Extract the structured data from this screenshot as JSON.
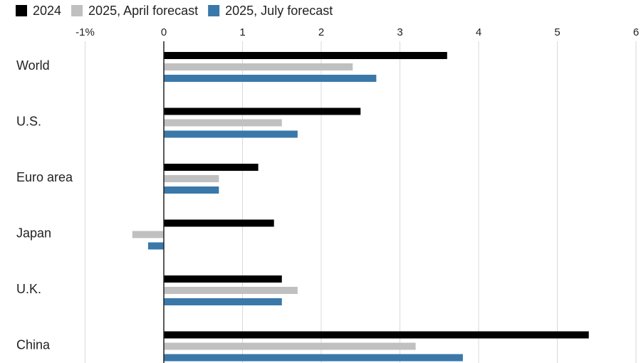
{
  "chart_data": {
    "type": "bar",
    "orientation": "horizontal",
    "title": "",
    "xlabel": "",
    "ylabel": "",
    "xlim": [
      -1,
      6
    ],
    "ticks": [
      -1,
      0,
      1,
      2,
      3,
      4,
      5,
      6
    ],
    "tick_labels": [
      "-1%",
      "0",
      "1",
      "2",
      "3",
      "4",
      "5",
      "6"
    ],
    "grid": "vertical",
    "legend_position": "top-left",
    "categories": [
      "World",
      "U.S.",
      "Euro area",
      "Japan",
      "U.K.",
      "China"
    ],
    "series": [
      {
        "name": "2024",
        "color": "#000000",
        "values": [
          3.6,
          2.5,
          1.2,
          1.4,
          1.5,
          5.4
        ]
      },
      {
        "name": "2025, April forecast",
        "color": "#c0c0c0",
        "values": [
          2.4,
          1.5,
          0.7,
          -0.4,
          1.7,
          3.2
        ]
      },
      {
        "name": "2025, July forecast",
        "color": "#3a78aa",
        "values": [
          2.7,
          1.7,
          0.7,
          -0.2,
          1.5,
          3.8
        ]
      }
    ]
  }
}
